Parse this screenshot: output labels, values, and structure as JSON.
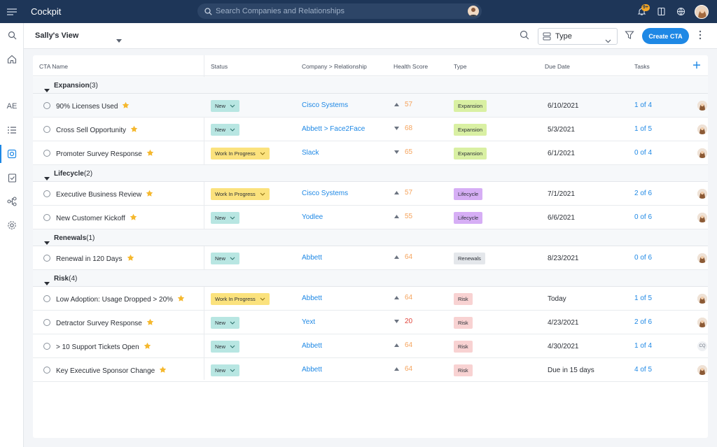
{
  "app": {
    "title": "Cockpit",
    "search_placeholder": "Search Companies and Relationships",
    "notification_count": "9+"
  },
  "rail": {
    "ae_label": "AE"
  },
  "toolbar": {
    "view_name": "Sally's View",
    "type_filter": "Type",
    "create_label": "Create CTA"
  },
  "table": {
    "columns": [
      "CTA Name",
      "Status",
      "Company > Relationship",
      "Health Score",
      "Type",
      "Due Date",
      "Tasks"
    ],
    "groups": [
      {
        "name": "Expansion",
        "count": "(3)",
        "rows": [
          {
            "name": "90% Licenses Used",
            "status": "New",
            "company": "Cisco Systems",
            "health": "57",
            "health_dir": "up",
            "type": "Expansion",
            "due": "6/10/2021",
            "tasks": "1 of 4",
            "owner": "avatar"
          },
          {
            "name": "Cross Sell Opportunity",
            "status": "New",
            "company": "Abbett > Face2Face",
            "health": "68",
            "health_dir": "down",
            "type": "Expansion",
            "due": "5/3/2021",
            "tasks": "1 of 5",
            "owner": "avatar"
          },
          {
            "name": "Promoter Survey Response",
            "status": "Work In Progress",
            "company": "Slack",
            "health": "65",
            "health_dir": "down",
            "type": "Expansion",
            "due": "6/1/2021",
            "tasks": "0 of 4",
            "owner": "avatar"
          }
        ]
      },
      {
        "name": "Lifecycle",
        "count": "(2)",
        "rows": [
          {
            "name": "Executive Business Review",
            "status": "Work In Progress",
            "company": "Cisco Systems",
            "health": "57",
            "health_dir": "up",
            "type": "Lifecycle",
            "due": "7/1/2021",
            "tasks": "2 of 6",
            "owner": "avatar"
          },
          {
            "name": "New Customer Kickoff",
            "status": "New",
            "company": "Yodlee",
            "health": "55",
            "health_dir": "up",
            "type": "Lifecycle",
            "due": "6/6/2021",
            "tasks": "0 of 6",
            "owner": "avatar"
          }
        ]
      },
      {
        "name": "Renewals",
        "count": "(1)",
        "rows": [
          {
            "name": "Renewal in 120 Days",
            "status": "New",
            "company": "Abbett",
            "health": "64",
            "health_dir": "up",
            "type": "Renewals",
            "due": "8/23/2021",
            "tasks": "0 of 6",
            "owner": "avatar"
          }
        ]
      },
      {
        "name": "Risk",
        "count": "(4)",
        "rows": [
          {
            "name": "Low Adoption: Usage Dropped > 20%",
            "status": "Work In Progress",
            "company": "Abbett",
            "health": "64",
            "health_dir": "up",
            "type": "Risk",
            "due": "Today",
            "tasks": "1 of 5",
            "owner": "avatar"
          },
          {
            "name": "Detractor Survey Response",
            "status": "New",
            "company": "Yext",
            "health": "20",
            "health_dir": "down",
            "type": "Risk",
            "due": "4/23/2021",
            "tasks": "2 of 6",
            "owner": "avatar"
          },
          {
            "name": "> 10 Support Tickets Open",
            "status": "New",
            "company": "Abbett",
            "health": "64",
            "health_dir": "up",
            "type": "Risk",
            "due": "4/30/2021",
            "tasks": "1 of 4",
            "owner": "CQ"
          },
          {
            "name": "Key Executive Sponsor Change",
            "status": "New",
            "company": "Abbett",
            "health": "64",
            "health_dir": "up",
            "type": "Risk",
            "due": "Due in 15 days",
            "tasks": "4 of 5",
            "owner": "avatar"
          }
        ]
      }
    ]
  },
  "colors": {
    "topbar": "#1e3658",
    "accent": "#1e88e5",
    "status_new": "#b8e6e2",
    "status_wip": "#fbe27d",
    "type_expansion": "#d9f0a3",
    "type_lifecycle": "#d6aef5",
    "type_renewals": "#e4e7eb",
    "type_risk": "#f8d2d2",
    "health_orange": "#f5a35c",
    "health_red": "#e0453c",
    "star": "#f5b82e"
  }
}
